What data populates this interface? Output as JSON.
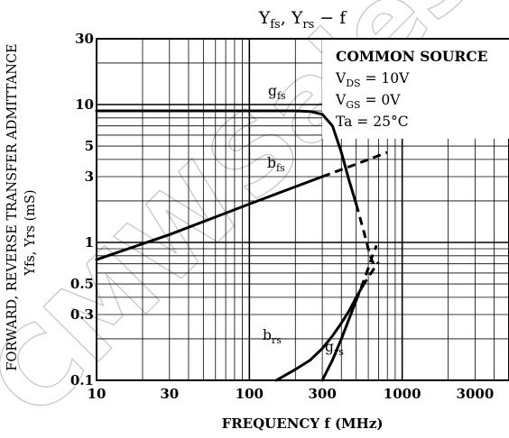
{
  "chart_data": {
    "type": "line",
    "title_main": "Y",
    "title_sub1": "fs",
    "title_mid": ", Y",
    "title_sub2": "rs",
    "title_tail": " − f",
    "xlabel": "FREQUENCY  f  (MHz)",
    "ylabel_line1": "FORWARD, REVERSE TRANSFER ADMITTANCE",
    "ylabel_line2": "Yfs, Yrs  (mS)",
    "x_scale": "log",
    "y_scale": "log",
    "xlim": [
      10,
      5000
    ],
    "ylim": [
      0.1,
      30
    ],
    "x_ticks": [
      {
        "value": 10,
        "label": "10"
      },
      {
        "value": 30,
        "label": "30"
      },
      {
        "value": 100,
        "label": "100"
      },
      {
        "value": 300,
        "label": "300"
      },
      {
        "value": 1000,
        "label": "1000"
      },
      {
        "value": 3000,
        "label": "3000"
      }
    ],
    "y_ticks": [
      {
        "value": 30,
        "label": "30"
      },
      {
        "value": 10,
        "label": "10"
      },
      {
        "value": 5,
        "label": "5"
      },
      {
        "value": 3,
        "label": "3"
      },
      {
        "value": 1,
        "label": "1"
      },
      {
        "value": 0.5,
        "label": "0.5"
      },
      {
        "value": 0.3,
        "label": "0.3"
      },
      {
        "value": 0.1,
        "label": "0.1"
      }
    ],
    "grid": true,
    "legend_lines": [
      {
        "main": "COMMON SOURCE",
        "sub": "",
        "rest": ""
      },
      {
        "main": "V",
        "sub": "DS",
        "rest": " = 10V"
      },
      {
        "main": "V",
        "sub": "GS",
        "rest": " = 0V"
      },
      {
        "main": "Ta = 25°C",
        "sub": "",
        "rest": ""
      }
    ],
    "series": [
      {
        "name_main": "g",
        "name_sub": "fs",
        "x": [
          10,
          100,
          200,
          250,
          300,
          350,
          400,
          450,
          500,
          550,
          600,
          630,
          650
        ],
        "y": [
          9,
          9,
          9,
          8.9,
          8.5,
          7,
          4.5,
          2.8,
          1.9,
          1.3,
          0.9,
          0.75,
          0.7
        ],
        "dashed_from_x": 520
      },
      {
        "name_main": "b",
        "name_sub": "fs",
        "x": [
          10,
          30,
          100,
          300,
          500,
          800
        ],
        "y": [
          0.75,
          1.14,
          1.9,
          3.0,
          3.7,
          4.5
        ],
        "dashed_from_x": 420
      },
      {
        "name_main": "b",
        "name_sub": "rs",
        "x": [
          150,
          200,
          250,
          300,
          350,
          400,
          450,
          500,
          550,
          600,
          650,
          700
        ],
        "y": [
          0.1,
          0.12,
          0.14,
          0.17,
          0.21,
          0.26,
          0.32,
          0.4,
          0.48,
          0.56,
          0.64,
          0.72
        ],
        "dashed_from_x": 560
      },
      {
        "name_main": "g",
        "name_sub": "rs",
        "x": [
          300,
          350,
          400,
          450,
          500,
          550,
          600,
          650,
          680
        ],
        "y": [
          0.1,
          0.14,
          0.2,
          0.28,
          0.38,
          0.5,
          0.65,
          0.85,
          0.95
        ],
        "dashed_from_x": 530
      }
    ]
  },
  "watermark": "CMW Sales"
}
